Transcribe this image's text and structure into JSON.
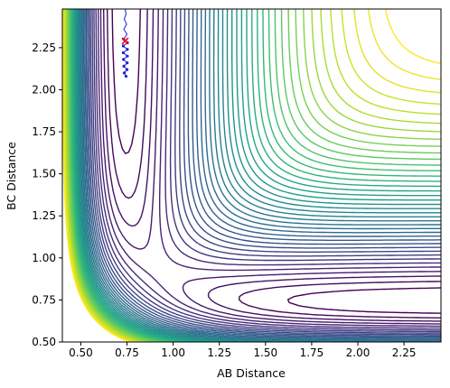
{
  "chart_data": {
    "type": "contour",
    "xlabel": "AB Distance",
    "ylabel": "BC Distance",
    "xlim": [
      0.4,
      2.45
    ],
    "ylim": [
      0.5,
      2.48
    ],
    "x_ticks": [
      "0.50",
      "0.75",
      "1.00",
      "1.25",
      "1.50",
      "1.75",
      "2.00",
      "2.25"
    ],
    "y_ticks": [
      "0.50",
      "0.75",
      "1.00",
      "1.25",
      "1.50",
      "1.75",
      "2.00",
      "2.25"
    ],
    "colormap": "viridis",
    "contour_levels": 40,
    "surface": {
      "type": "LEPS potential energy surface (A + BC)",
      "equilibrium_bond_length": 0.74,
      "channel_minimum_r_bc": 0.93
    },
    "trajectory": {
      "color": "#1f1fdc",
      "start": {
        "x": 0.74,
        "y": 2.48
      },
      "end": {
        "x": 0.745,
        "y": 2.08
      },
      "points": [
        [
          0.74,
          2.48
        ],
        [
          0.745,
          2.45
        ],
        [
          0.735,
          2.42
        ],
        [
          0.748,
          2.39
        ],
        [
          0.733,
          2.36
        ],
        [
          0.75,
          2.33
        ],
        [
          0.732,
          2.3
        ],
        [
          0.752,
          2.28
        ],
        [
          0.73,
          2.26
        ],
        [
          0.752,
          2.24
        ],
        [
          0.73,
          2.22
        ],
        [
          0.752,
          2.2
        ],
        [
          0.731,
          2.18
        ],
        [
          0.751,
          2.16
        ],
        [
          0.733,
          2.14
        ],
        [
          0.75,
          2.12
        ],
        [
          0.735,
          2.1
        ],
        [
          0.745,
          2.08
        ]
      ]
    },
    "marker": {
      "symbol": "x",
      "color": "#ff0000",
      "x": 0.74,
      "y": 2.29
    }
  }
}
